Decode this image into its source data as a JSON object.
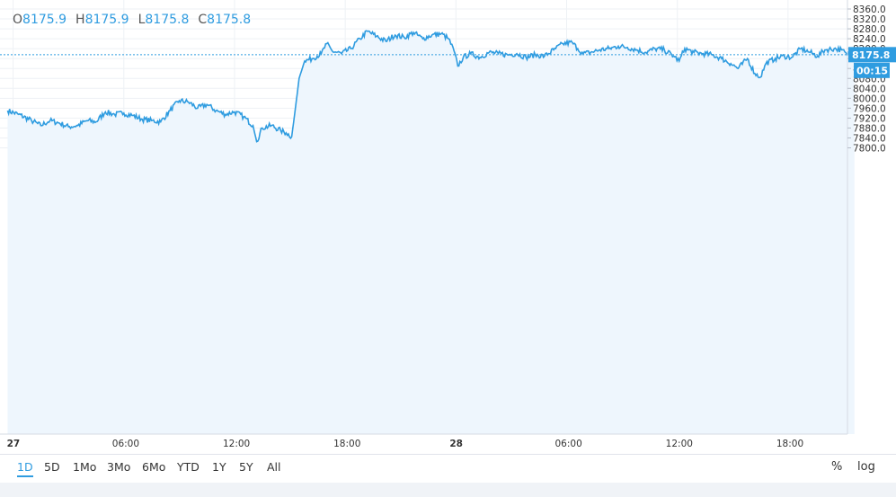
{
  "ohlc": {
    "open_label": "O",
    "open": "8175.9",
    "high_label": "H",
    "high": "8175.9",
    "low_label": "L",
    "low": "8175.8",
    "close_label": "C",
    "close": "8175.8"
  },
  "price_scale": {
    "last_price": "8175.8",
    "countdown": "00:15"
  },
  "ranges": [
    "1D",
    "5D",
    "1Mo",
    "3Mo",
    "6Mo",
    "YTD",
    "1Y",
    "5Y",
    "All"
  ],
  "active_range": "1D",
  "scale_buttons": {
    "percent": "%",
    "log": "log"
  },
  "colors": {
    "line": "#2f9ce0",
    "fill": "#eef6fd",
    "grid": "#eef1f5",
    "label_bg": "#2f9ce0"
  },
  "chart_data": {
    "type": "area",
    "ylim": [
      7780,
      8360
    ],
    "y_ticks": [
      7800,
      7840,
      7880,
      7920,
      7960,
      8000,
      8040,
      8080,
      8120,
      8160,
      8200,
      8240,
      8280,
      8320,
      8360
    ],
    "x_ticks": [
      {
        "t": 0,
        "label": "27"
      },
      {
        "t": 6,
        "label": "06:00"
      },
      {
        "t": 12,
        "label": "12:00"
      },
      {
        "t": 18,
        "label": "18:00"
      },
      {
        "t": 24,
        "label": "28"
      },
      {
        "t": 30,
        "label": "06:00"
      },
      {
        "t": 36,
        "label": "12:00"
      },
      {
        "t": 42,
        "label": "18:00"
      }
    ],
    "last_value": 8175.8,
    "series": [
      {
        "points": [
          [
            -0.3,
            7950
          ],
          [
            0.3,
            7935
          ],
          [
            1.0,
            7910
          ],
          [
            1.5,
            7890
          ],
          [
            2.0,
            7910
          ],
          [
            2.5,
            7900
          ],
          [
            3.0,
            7885
          ],
          [
            3.5,
            7890
          ],
          [
            4.0,
            7910
          ],
          [
            4.5,
            7905
          ],
          [
            5.0,
            7945
          ],
          [
            5.5,
            7935
          ],
          [
            6.0,
            7940
          ],
          [
            6.5,
            7930
          ],
          [
            7.0,
            7915
          ],
          [
            7.5,
            7910
          ],
          [
            8.0,
            7905
          ],
          [
            8.5,
            7950
          ],
          [
            9.0,
            7990
          ],
          [
            9.5,
            7985
          ],
          [
            10.0,
            7960
          ],
          [
            10.5,
            7975
          ],
          [
            11.0,
            7950
          ],
          [
            11.5,
            7935
          ],
          [
            12.0,
            7945
          ],
          [
            12.5,
            7925
          ],
          [
            13.0,
            7890
          ],
          [
            13.2,
            7825
          ],
          [
            13.5,
            7880
          ],
          [
            14.0,
            7890
          ],
          [
            14.5,
            7870
          ],
          [
            14.8,
            7860
          ],
          [
            15.1,
            7845
          ],
          [
            15.3,
            7960
          ],
          [
            15.5,
            8080
          ],
          [
            15.8,
            8150
          ],
          [
            16.2,
            8160
          ],
          [
            16.7,
            8180
          ],
          [
            17.0,
            8220
          ],
          [
            17.3,
            8190
          ],
          [
            17.8,
            8180
          ],
          [
            18.3,
            8200
          ],
          [
            18.8,
            8240
          ],
          [
            19.2,
            8270
          ],
          [
            19.7,
            8250
          ],
          [
            20.2,
            8230
          ],
          [
            20.7,
            8255
          ],
          [
            21.2,
            8245
          ],
          [
            21.7,
            8265
          ],
          [
            22.2,
            8240
          ],
          [
            22.7,
            8255
          ],
          [
            23.2,
            8260
          ],
          [
            23.6,
            8240
          ],
          [
            23.9,
            8190
          ],
          [
            24.1,
            8130
          ],
          [
            24.4,
            8165
          ],
          [
            24.8,
            8180
          ],
          [
            25.3,
            8165
          ],
          [
            25.8,
            8185
          ],
          [
            26.3,
            8180
          ],
          [
            26.8,
            8175
          ],
          [
            27.3,
            8180
          ],
          [
            27.8,
            8165
          ],
          [
            28.3,
            8175
          ],
          [
            28.8,
            8170
          ],
          [
            29.3,
            8195
          ],
          [
            29.8,
            8220
          ],
          [
            30.3,
            8225
          ],
          [
            30.6,
            8200
          ],
          [
            30.9,
            8180
          ],
          [
            31.3,
            8185
          ],
          [
            31.8,
            8195
          ],
          [
            32.3,
            8200
          ],
          [
            32.8,
            8210
          ],
          [
            33.3,
            8205
          ],
          [
            33.8,
            8195
          ],
          [
            34.3,
            8185
          ],
          [
            34.8,
            8200
          ],
          [
            35.3,
            8195
          ],
          [
            35.8,
            8170
          ],
          [
            36.1,
            8150
          ],
          [
            36.4,
            8200
          ],
          [
            36.9,
            8185
          ],
          [
            37.4,
            8180
          ],
          [
            37.9,
            8175
          ],
          [
            38.4,
            8160
          ],
          [
            38.9,
            8140
          ],
          [
            39.3,
            8120
          ],
          [
            39.8,
            8160
          ],
          [
            40.2,
            8100
          ],
          [
            40.5,
            8085
          ],
          [
            40.8,
            8140
          ],
          [
            41.3,
            8160
          ],
          [
            41.8,
            8170
          ],
          [
            42.2,
            8165
          ],
          [
            42.7,
            8200
          ],
          [
            43.2,
            8185
          ],
          [
            43.6,
            8170
          ],
          [
            44.0,
            8195
          ],
          [
            44.5,
            8200
          ],
          [
            44.9,
            8195
          ],
          [
            45.2,
            8175
          ],
          [
            45.6,
            8175.8
          ]
        ]
      }
    ]
  }
}
